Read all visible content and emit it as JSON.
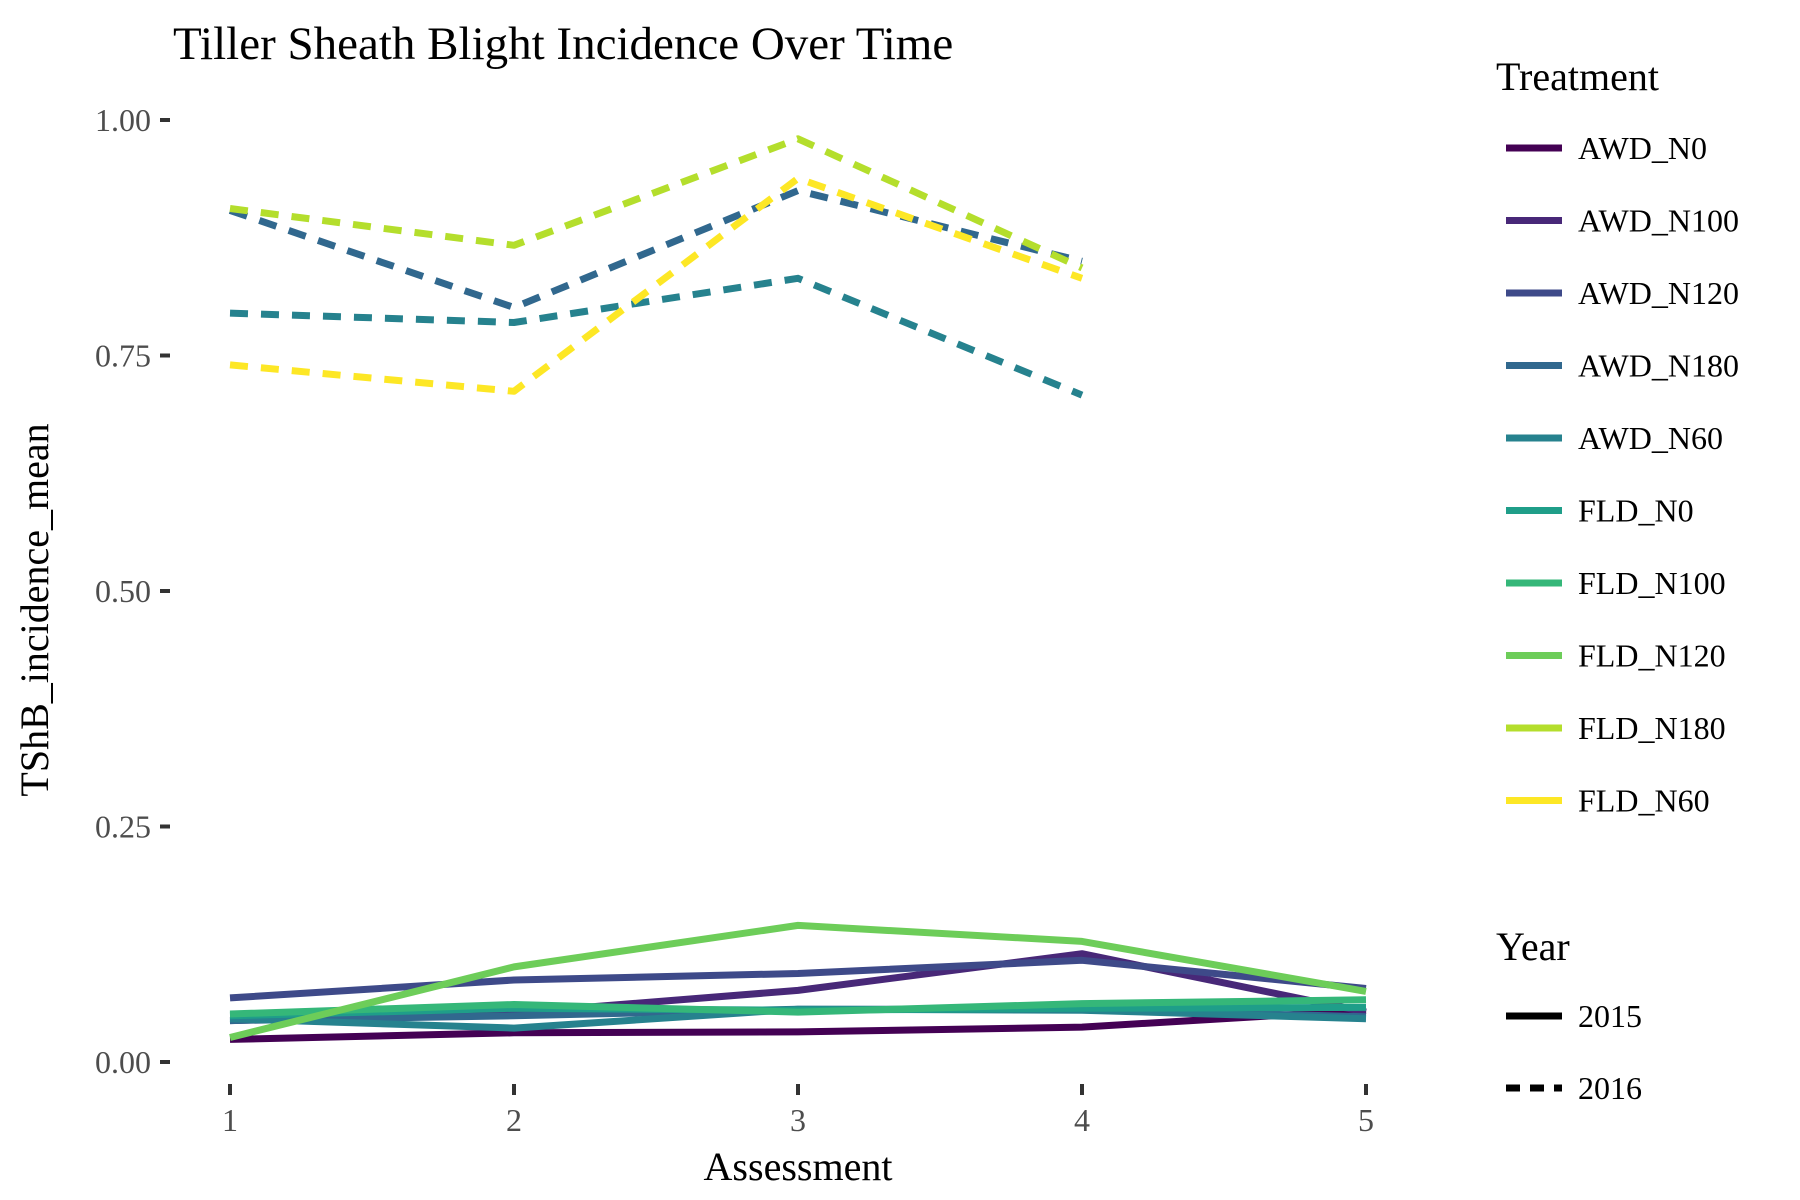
{
  "chart_data": {
    "type": "line",
    "title": "Tiller Sheath Blight Incidence Over Time",
    "xlabel": "Assessment",
    "ylabel": "TShB_incidence_mean",
    "x_ticks": [
      "1",
      "2",
      "3",
      "4",
      "5"
    ],
    "y_ticks": [
      "0.00",
      "0.25",
      "0.50",
      "0.75",
      "1.00"
    ],
    "xlim": [
      1,
      5
    ],
    "ylim": [
      0,
      1.0
    ],
    "grid": false,
    "legend_position": "right",
    "legend_color_title": "Treatment",
    "legend_linetype_title": "Year",
    "treatments": [
      {
        "name": "AWD_N0",
        "color": "#440154"
      },
      {
        "name": "AWD_N100",
        "color": "#482878"
      },
      {
        "name": "AWD_N120",
        "color": "#3E4A89"
      },
      {
        "name": "AWD_N180",
        "color": "#31688E"
      },
      {
        "name": "AWD_N60",
        "color": "#26828E"
      },
      {
        "name": "FLD_N0",
        "color": "#1F9E89"
      },
      {
        "name": "FLD_N100",
        "color": "#35B779"
      },
      {
        "name": "FLD_N120",
        "color": "#6DCD59"
      },
      {
        "name": "FLD_N180",
        "color": "#B4DE2C"
      },
      {
        "name": "FLD_N60",
        "color": "#FDE725"
      }
    ],
    "years": [
      {
        "name": "2015",
        "dash": "solid"
      },
      {
        "name": "2016",
        "dash": "dashed"
      }
    ],
    "series": [
      {
        "treatment": "AWD_N0",
        "year": "2015",
        "x": [
          1,
          2,
          3,
          4,
          5
        ],
        "y": [
          0.024,
          0.031,
          0.032,
          0.037,
          0.055
        ]
      },
      {
        "treatment": "AWD_N100",
        "year": "2015",
        "x": [
          1,
          2,
          3,
          4,
          5
        ],
        "y": [
          0.044,
          0.052,
          0.076,
          0.115,
          0.053
        ]
      },
      {
        "treatment": "AWD_N120",
        "year": "2015",
        "x": [
          1,
          2,
          3,
          4,
          5
        ],
        "y": [
          0.068,
          0.087,
          0.094,
          0.108,
          0.078
        ]
      },
      {
        "treatment": "AWD_N180",
        "year": "2015",
        "x": [
          1,
          2,
          3,
          4,
          5
        ],
        "y": [
          0.044,
          0.049,
          0.056,
          0.056,
          0.048
        ]
      },
      {
        "treatment": "AWD_N60",
        "year": "2015",
        "x": [
          1,
          2,
          3,
          4,
          5
        ],
        "y": [
          0.046,
          0.036,
          0.056,
          0.055,
          0.046
        ]
      },
      {
        "treatment": "FLD_N0",
        "year": "2015",
        "x": [
          1,
          2,
          3,
          4,
          5
        ],
        "y": [
          0.049,
          0.057,
          0.055,
          0.057,
          0.058
        ]
      },
      {
        "treatment": "FLD_N100",
        "year": "2015",
        "x": [
          1,
          2,
          3,
          4,
          5
        ],
        "y": [
          0.051,
          0.061,
          0.053,
          0.062,
          0.066
        ]
      },
      {
        "treatment": "FLD_N120",
        "year": "2015",
        "x": [
          1,
          2,
          3,
          4,
          5
        ],
        "y": [
          0.026,
          0.101,
          0.145,
          0.128,
          0.075
        ]
      },
      {
        "treatment": "AWD_N180",
        "year": "2016",
        "x": [
          1,
          2,
          3,
          4
        ],
        "y": [
          0.904,
          0.801,
          0.925,
          0.85
        ]
      },
      {
        "treatment": "AWD_N60",
        "year": "2016",
        "x": [
          1,
          2,
          3,
          4
        ],
        "y": [
          0.795,
          0.785,
          0.832,
          0.708
        ]
      },
      {
        "treatment": "FLD_N180",
        "year": "2016",
        "x": [
          1,
          2,
          3,
          4
        ],
        "y": [
          0.906,
          0.867,
          0.98,
          0.843
        ]
      },
      {
        "treatment": "FLD_N60",
        "year": "2016",
        "x": [
          1,
          2,
          3,
          4
        ],
        "y": [
          0.74,
          0.712,
          0.938,
          0.832
        ]
      }
    ]
  }
}
